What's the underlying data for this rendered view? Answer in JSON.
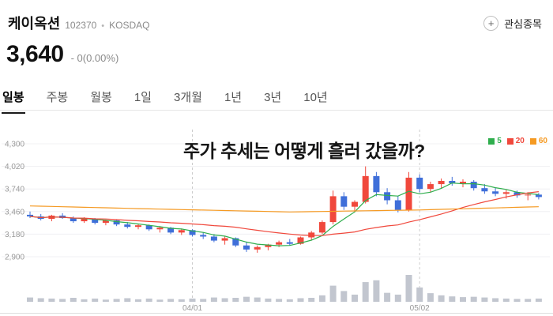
{
  "header": {
    "stock_name": "케이옥션",
    "stock_code": "102370",
    "separator": "•",
    "market": "KOSDAQ",
    "watchlist_label": "관심종목",
    "watchlist_icon": "+"
  },
  "price": {
    "current": "3,640",
    "change_text": "- 0(0.00%)"
  },
  "tabs": {
    "items": [
      {
        "key": "daily",
        "label": "일봉",
        "active": true
      },
      {
        "key": "weekly",
        "label": "주봉",
        "active": false
      },
      {
        "key": "monthly",
        "label": "월봉",
        "active": false
      },
      {
        "key": "1day",
        "label": "1일",
        "active": false
      },
      {
        "key": "3month",
        "label": "3개월",
        "active": false
      },
      {
        "key": "1year",
        "label": "1년",
        "active": false
      },
      {
        "key": "3year",
        "label": "3년",
        "active": false
      },
      {
        "key": "10year",
        "label": "10년",
        "active": false
      }
    ]
  },
  "overlay": {
    "headline": "주가 추세는 어떻게 흘러 갔을까?"
  },
  "chart_data": {
    "type": "candlestick",
    "ylim": [
      2900,
      4300
    ],
    "y_ticks": [
      {
        "value": 4300,
        "label": "4,300"
      },
      {
        "value": 4020,
        "label": "4,020"
      },
      {
        "value": 3740,
        "label": "3,740"
      },
      {
        "value": 3460,
        "label": "3,460"
      },
      {
        "value": 3180,
        "label": "3,180"
      },
      {
        "value": 2900,
        "label": "2,900"
      }
    ],
    "x_marks": [
      {
        "index": 15,
        "label": "04/01"
      },
      {
        "index": 36,
        "label": "05/02"
      }
    ],
    "legend": [
      {
        "label": "5",
        "color": "#2fae4d"
      },
      {
        "label": "20",
        "color": "#f0483c"
      },
      {
        "label": "60",
        "color": "#f59a23"
      }
    ],
    "colors": {
      "up": "#f0483c",
      "down": "#3f6fd9",
      "volume": "#c2c6cf",
      "grid": "#f0f0f3",
      "axis_text": "#999999",
      "dashed": "#cccccc",
      "divider": "#dddddd"
    },
    "ma_windows": [
      {
        "window": 5,
        "color": "#2fae4d"
      },
      {
        "window": 20,
        "color": "#f0483c"
      }
    ],
    "ma60_points": [
      [
        0,
        3530
      ],
      [
        12,
        3490
      ],
      [
        24,
        3455
      ],
      [
        36,
        3480
      ],
      [
        47,
        3520
      ]
    ],
    "ma60_color": "#f59a23",
    "candles": [
      [
        3420,
        3460,
        3380,
        3400,
        12
      ],
      [
        3400,
        3430,
        3350,
        3370,
        10
      ],
      [
        3370,
        3420,
        3340,
        3410,
        9
      ],
      [
        3410,
        3440,
        3370,
        3380,
        8
      ],
      [
        3380,
        3400,
        3320,
        3340,
        11
      ],
      [
        3340,
        3390,
        3320,
        3370,
        7
      ],
      [
        3370,
        3380,
        3300,
        3320,
        9
      ],
      [
        3320,
        3360,
        3290,
        3350,
        6
      ],
      [
        3350,
        3360,
        3280,
        3300,
        8
      ],
      [
        3300,
        3330,
        3250,
        3270,
        10
      ],
      [
        3270,
        3310,
        3240,
        3290,
        7
      ],
      [
        3290,
        3300,
        3220,
        3240,
        9
      ],
      [
        3240,
        3280,
        3200,
        3260,
        6
      ],
      [
        3260,
        3270,
        3180,
        3200,
        8
      ],
      [
        3200,
        3250,
        3170,
        3230,
        7
      ],
      [
        3230,
        3240,
        3150,
        3170,
        9
      ],
      [
        3170,
        3200,
        3120,
        3150,
        8
      ],
      [
        3150,
        3180,
        3080,
        3100,
        12
      ],
      [
        3100,
        3150,
        3050,
        3130,
        10
      ],
      [
        3130,
        3140,
        3020,
        3040,
        11
      ],
      [
        3040,
        3080,
        2960,
        2990,
        14
      ],
      [
        2990,
        3040,
        2950,
        3020,
        12
      ],
      [
        3020,
        3060,
        2980,
        3050,
        9
      ],
      [
        3050,
        3100,
        3020,
        3080,
        8
      ],
      [
        3080,
        3120,
        3040,
        3060,
        7
      ],
      [
        3060,
        3150,
        3050,
        3140,
        10
      ],
      [
        3140,
        3220,
        3100,
        3200,
        11
      ],
      [
        3200,
        3350,
        3180,
        3330,
        18
      ],
      [
        3330,
        3720,
        3300,
        3650,
        45
      ],
      [
        3650,
        3700,
        3480,
        3520,
        30
      ],
      [
        3520,
        3600,
        3450,
        3580,
        20
      ],
      [
        3580,
        4020,
        3560,
        3900,
        55
      ],
      [
        3900,
        3950,
        3650,
        3700,
        60
      ],
      [
        3700,
        3750,
        3550,
        3600,
        25
      ],
      [
        3600,
        3650,
        3450,
        3480,
        20
      ],
      [
        3480,
        3950,
        3460,
        3880,
        75
      ],
      [
        3880,
        3920,
        3700,
        3740,
        40
      ],
      [
        3740,
        3830,
        3700,
        3800,
        24
      ],
      [
        3800,
        3870,
        3750,
        3840,
        18
      ],
      [
        3840,
        3890,
        3780,
        3810,
        15
      ],
      [
        3810,
        3860,
        3760,
        3830,
        13
      ],
      [
        3830,
        3850,
        3720,
        3750,
        14
      ],
      [
        3750,
        3800,
        3680,
        3710,
        12
      ],
      [
        3710,
        3760,
        3650,
        3680,
        10
      ],
      [
        3680,
        3730,
        3620,
        3700,
        9
      ],
      [
        3700,
        3720,
        3630,
        3660,
        8
      ],
      [
        3660,
        3700,
        3600,
        3670,
        8
      ],
      [
        3670,
        3690,
        3610,
        3640,
        9
      ]
    ]
  }
}
